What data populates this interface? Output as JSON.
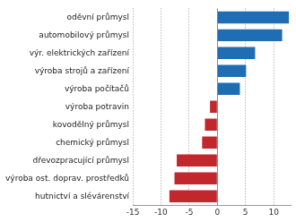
{
  "chart_data": {
    "type": "bar",
    "orientation": "horizontal",
    "categories": [
      "oděvní průmysl",
      "automobilový průmysl",
      "výr. elektrických zařízení",
      "výroba strojů a zařízení",
      "výroba počítačů",
      "výroba potravin",
      "kovodělný průmysl",
      "chemický průmysl",
      "dřevozpracující průmysl",
      "výroba ost. doprav. prostředků",
      "hutnictví a slévárenství"
    ],
    "values": [
      12.7,
      11.5,
      6.7,
      5.1,
      4.0,
      -1.3,
      -2.2,
      -2.7,
      -7.2,
      -7.6,
      -8.5
    ],
    "colors": [
      "#1f6db3",
      "#1f6db3",
      "#1f6db3",
      "#1f6db3",
      "#1f6db3",
      "#c1272d",
      "#c1272d",
      "#c1272d",
      "#c1272d",
      "#c1272d",
      "#c1272d"
    ],
    "xlim": [
      -15,
      13
    ],
    "xticks": [
      -15,
      -10,
      -5,
      0,
      5,
      10
    ],
    "grid": true
  }
}
